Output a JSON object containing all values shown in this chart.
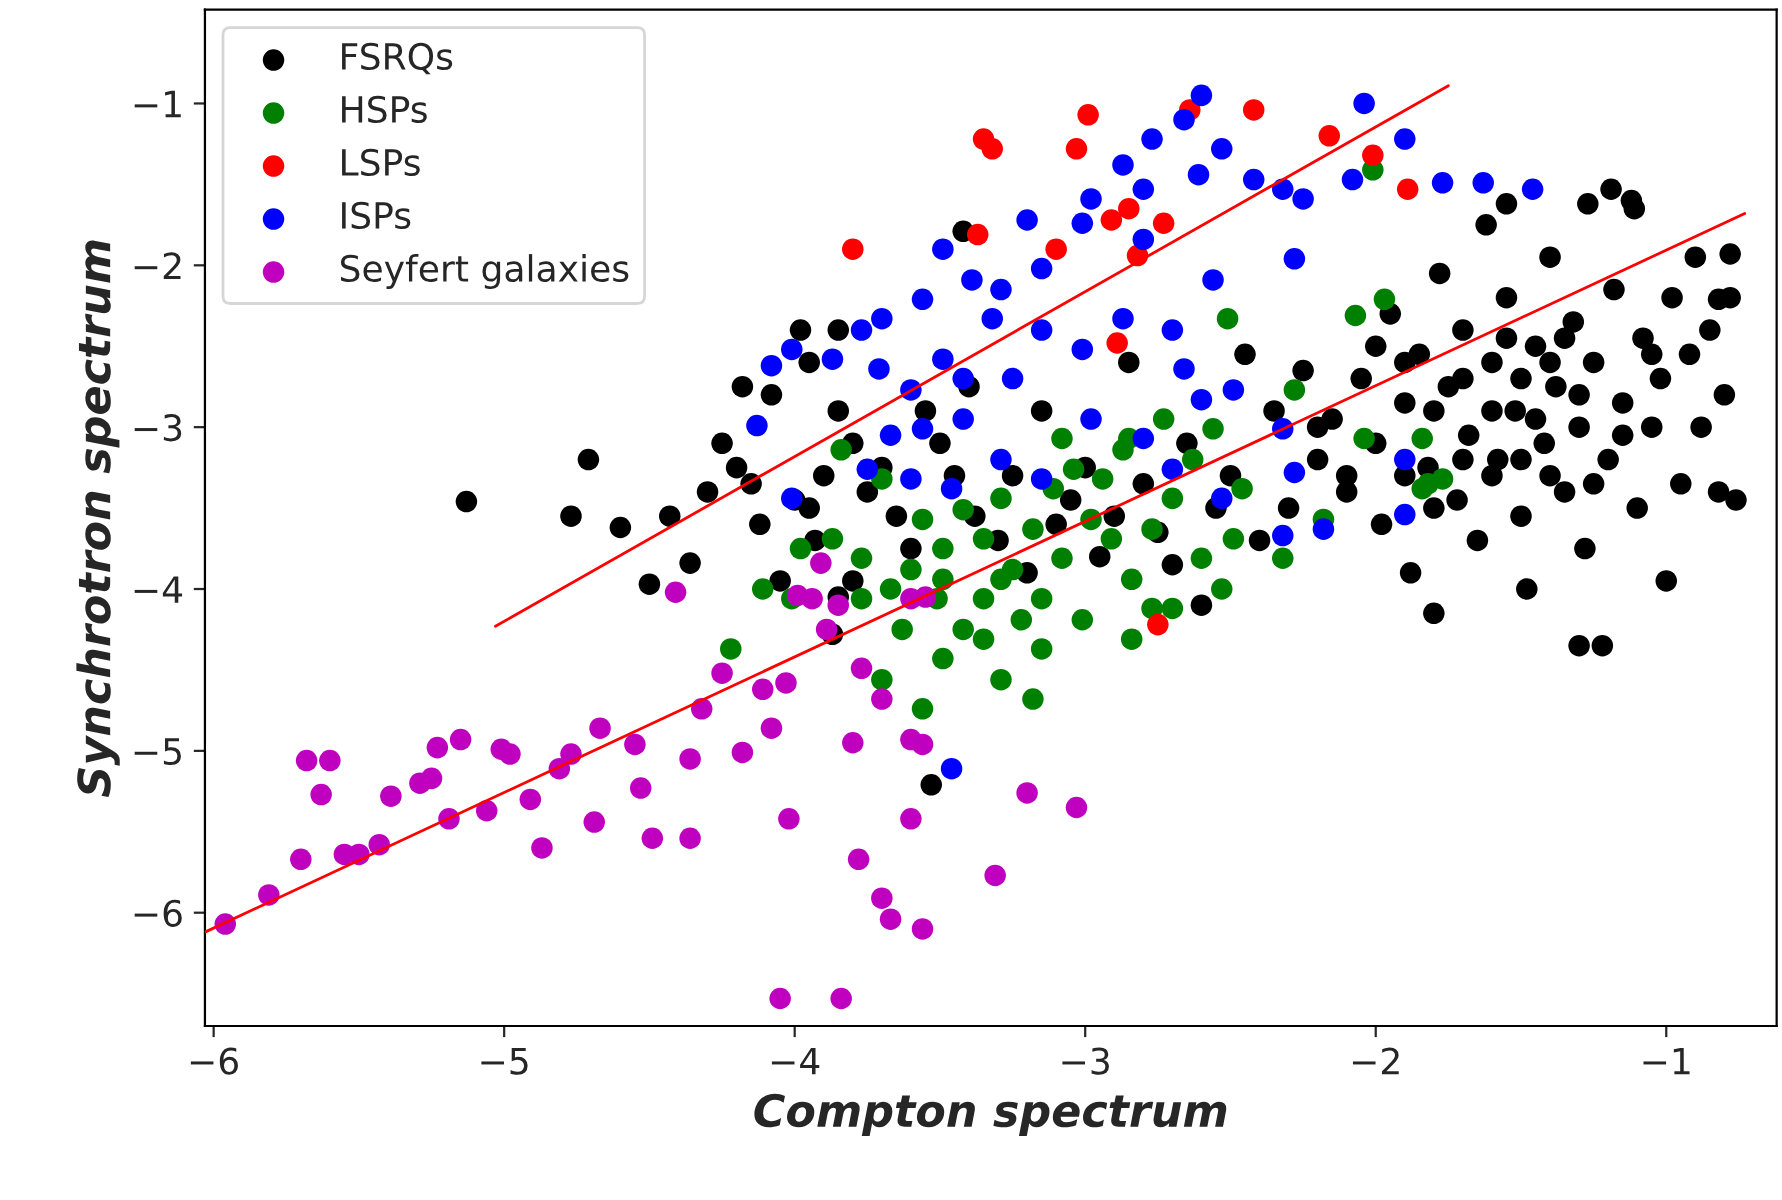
{
  "chart_data": {
    "type": "scatter",
    "xlabel": "Compton spectrum",
    "ylabel": "Synchrotron spectrum",
    "xlim": [
      -6.03,
      -0.62
    ],
    "ylim": [
      -6.7,
      -0.42
    ],
    "xticks": [
      -6,
      -5,
      -4,
      -3,
      -2,
      -1
    ],
    "yticks": [
      -6,
      -5,
      -4,
      -3,
      -2,
      -1
    ],
    "grid": false,
    "legend": "top left",
    "marker": "circle",
    "series": [
      {
        "name": "FSRQs",
        "color": "#000000",
        "x": [
          -5.13,
          -4.77,
          -4.71,
          -4.6,
          -4.5,
          -4.43,
          -4.36,
          -4.3,
          -4.25,
          -4.2,
          -4.15,
          -4.12,
          -4.05,
          -4.0,
          -3.95,
          -3.93,
          -3.9,
          -3.87,
          -3.85,
          -3.8,
          -3.75,
          -4.08,
          -4.18,
          -3.98,
          -3.95,
          -3.85,
          -3.8,
          -3.7,
          -3.65,
          -3.6,
          -3.55,
          -3.5,
          -3.45,
          -3.4,
          -3.38,
          -3.3,
          -3.25,
          -3.2,
          -3.15,
          -3.1,
          -3.05,
          -3.0,
          -2.95,
          -2.9,
          -2.85,
          -2.8,
          -2.75,
          -2.7,
          -2.65,
          -2.6,
          -2.55,
          -2.5,
          -2.45,
          -2.4,
          -2.35,
          -2.3,
          -2.25,
          -2.2,
          -3.53,
          -3.42,
          -3.85,
          -2.15,
          -2.1,
          -2.05,
          -2.0,
          -1.98,
          -1.95,
          -1.9,
          -1.88,
          -1.85,
          -1.82,
          -1.8,
          -1.78,
          -1.75,
          -1.72,
          -1.7,
          -1.68,
          -1.65,
          -1.62,
          -1.6,
          -1.58,
          -1.55,
          -1.52,
          -1.5,
          -1.48,
          -1.45,
          -1.42,
          -1.4,
          -1.38,
          -1.35,
          -1.32,
          -1.3,
          -1.28,
          -1.25,
          -1.22,
          -1.2,
          -1.18,
          -1.15,
          -1.12,
          -1.1,
          -1.08,
          -1.05,
          -1.02,
          -1.0,
          -0.98,
          -0.95,
          -0.92,
          -0.9,
          -0.88,
          -0.85,
          -0.82,
          -0.8,
          -0.76,
          -0.78,
          -1.55,
          -1.27,
          -1.19,
          -1.11,
          -0.78,
          -0.82,
          -1.3,
          -2.0,
          -1.9,
          -1.8,
          -1.7,
          -1.6,
          -1.5,
          -1.4,
          -1.3,
          -1.6,
          -1.7,
          -1.5,
          -1.4,
          -1.8,
          -2.1,
          -2.2,
          -1.9,
          -1.55,
          -1.45,
          -1.35,
          -1.25,
          -1.15,
          -1.05
        ],
        "values": [
          -3.46,
          -3.55,
          -3.2,
          -3.62,
          -3.97,
          -3.55,
          -3.84,
          -3.4,
          -3.1,
          -3.25,
          -3.35,
          -3.6,
          -3.95,
          -3.45,
          -3.5,
          -3.7,
          -3.3,
          -4.28,
          -4.05,
          -3.95,
          -3.4,
          -2.8,
          -2.75,
          -2.4,
          -2.6,
          -2.9,
          -3.1,
          -3.25,
          -3.55,
          -3.75,
          -2.9,
          -3.1,
          -3.3,
          -2.75,
          -3.55,
          -3.7,
          -3.3,
          -3.9,
          -2.9,
          -3.6,
          -3.45,
          -3.25,
          -3.8,
          -3.55,
          -2.6,
          -3.35,
          -3.65,
          -3.85,
          -3.1,
          -4.1,
          -3.5,
          -3.3,
          -2.55,
          -3.7,
          -2.9,
          -3.5,
          -2.65,
          -3.2,
          -5.21,
          -1.79,
          -2.4,
          -2.95,
          -3.4,
          -2.7,
          -3.1,
          -3.6,
          -2.3,
          -2.85,
          -3.9,
          -2.55,
          -3.25,
          -4.15,
          -2.05,
          -2.75,
          -3.45,
          -2.4,
          -3.05,
          -3.7,
          -1.75,
          -2.6,
          -3.2,
          -2.2,
          -2.9,
          -3.55,
          -4.0,
          -2.5,
          -3.1,
          -1.95,
          -2.75,
          -3.4,
          -2.35,
          -3.0,
          -3.75,
          -2.6,
          -4.35,
          -3.2,
          -2.15,
          -2.85,
          -1.6,
          -3.5,
          -2.45,
          -3.0,
          -2.7,
          -3.95,
          -2.2,
          -3.35,
          -2.55,
          -1.95,
          -3.0,
          -2.4,
          -3.4,
          -2.8,
          -3.45,
          -2.2,
          -1.62,
          -1.62,
          -1.53,
          -1.65,
          -1.93,
          -2.21,
          -4.35,
          -2.5,
          -2.6,
          -2.9,
          -2.7,
          -2.9,
          -2.7,
          -2.6,
          -2.8,
          -3.3,
          -3.2,
          -3.2,
          -3.3,
          -3.5,
          -3.3,
          -3.0,
          -3.3,
          -2.45,
          -2.95,
          -2.45,
          -3.35,
          -3.05,
          -2.55
        ]
      },
      {
        "name": "HSPs",
        "color": "#008000",
        "x": [
          -3.84,
          -3.7,
          -3.56,
          -3.49,
          -3.42,
          -3.35,
          -3.29,
          -3.25,
          -3.18,
          -3.15,
          -3.08,
          -3.01,
          -2.98,
          -2.91,
          -2.84,
          -2.77,
          -2.7,
          -2.63,
          -2.56,
          -2.46,
          -2.32,
          -2.18,
          -2.04,
          -1.97,
          -1.84,
          -1.77,
          -1.84,
          -3.51,
          -3.63,
          -3.7,
          -3.56,
          -3.49,
          -3.42,
          -3.35,
          -3.22,
          -3.18,
          -3.15,
          -3.29,
          -3.35,
          -3.77,
          -3.87,
          -3.98,
          -4.11,
          -4.22,
          -4.01,
          -3.6,
          -3.67,
          -3.49,
          -3.29,
          -3.11,
          -3.04,
          -2.94,
          -2.87,
          -2.6,
          -2.53,
          -2.49,
          -2.77,
          -3.08,
          -2.85,
          -2.73,
          -3.77,
          -2.28,
          -2.51,
          -2.07,
          -2.01,
          -1.82,
          -2.84,
          -2.7
        ],
        "values": [
          -3.14,
          -3.32,
          -3.57,
          -3.75,
          -3.51,
          -3.69,
          -3.44,
          -3.88,
          -3.63,
          -4.06,
          -3.81,
          -4.19,
          -3.57,
          -3.69,
          -3.94,
          -3.63,
          -3.44,
          -3.2,
          -3.01,
          -3.38,
          -3.81,
          -3.57,
          -3.07,
          -2.21,
          -3.07,
          -3.32,
          -3.38,
          -4.06,
          -4.25,
          -4.56,
          -4.74,
          -4.43,
          -4.25,
          -4.06,
          -4.19,
          -4.68,
          -4.37,
          -4.56,
          -4.31,
          -3.81,
          -3.69,
          -3.75,
          -4.0,
          -4.37,
          -4.06,
          -3.88,
          -4.0,
          -3.94,
          -3.94,
          -3.38,
          -3.26,
          -3.32,
          -3.14,
          -3.81,
          -4.0,
          -3.69,
          -4.12,
          -3.07,
          -3.07,
          -2.95,
          -4.06,
          -2.77,
          -2.33,
          -2.31,
          -1.41,
          -3.35,
          -4.31,
          -4.12
        ]
      },
      {
        "name": "LSPs",
        "color": "#ff0000",
        "x": [
          -3.8,
          -3.35,
          -3.32,
          -3.03,
          -2.99,
          -2.64,
          -2.42,
          -2.16,
          -2.01,
          -1.89,
          -2.85,
          -2.91,
          -2.82,
          -2.89,
          -3.1,
          -3.37,
          -2.73,
          -2.75
        ],
        "values": [
          -1.9,
          -1.22,
          -1.28,
          -1.28,
          -1.07,
          -1.04,
          -1.04,
          -1.2,
          -1.32,
          -1.53,
          -1.65,
          -1.72,
          -1.94,
          -2.48,
          -1.9,
          -1.81,
          -1.74,
          -4.22
        ]
      },
      {
        "name": "ISPs",
        "color": "#0000ff",
        "x": [
          -2.6,
          -2.77,
          -2.66,
          -2.53,
          -2.42,
          -2.61,
          -2.87,
          -2.98,
          -2.8,
          -3.01,
          -3.2,
          -3.49,
          -3.15,
          -3.29,
          -3.39,
          -3.56,
          -3.7,
          -3.77,
          -3.87,
          -3.71,
          -3.49,
          -3.32,
          -3.15,
          -3.01,
          -2.87,
          -2.7,
          -2.56,
          -2.32,
          -2.25,
          -2.04,
          -1.9,
          -2.28,
          -2.66,
          -3.25,
          -3.42,
          -3.56,
          -3.6,
          -3.46,
          -3.29,
          -3.15,
          -2.98,
          -2.8,
          -2.7,
          -2.6,
          -2.49,
          -2.32,
          -2.53,
          -3.42,
          -4.01,
          -4.01,
          -4.13,
          -2.8,
          -1.77,
          -1.63,
          -2.18,
          -2.28,
          -1.9,
          -4.08,
          -3.67,
          -3.75,
          -3.46,
          -2.32,
          -2.08,
          -3.6,
          -1.46,
          -1.9
        ],
        "values": [
          -0.95,
          -1.22,
          -1.1,
          -1.28,
          -1.47,
          -1.44,
          -1.38,
          -1.59,
          -1.53,
          -1.74,
          -1.72,
          -1.9,
          -2.02,
          -2.15,
          -2.09,
          -2.21,
          -2.33,
          -2.4,
          -2.58,
          -2.64,
          -2.58,
          -2.33,
          -2.4,
          -2.52,
          -2.33,
          -2.4,
          -2.09,
          -1.53,
          -1.59,
          -1.0,
          -1.22,
          -1.96,
          -2.64,
          -2.7,
          -2.95,
          -3.01,
          -3.32,
          -3.38,
          -3.2,
          -3.32,
          -2.95,
          -3.07,
          -3.26,
          -2.83,
          -2.77,
          -3.01,
          -3.44,
          -2.7,
          -3.44,
          -2.52,
          -2.99,
          -1.84,
          -1.49,
          -1.49,
          -3.63,
          -3.28,
          -3.2,
          -2.62,
          -3.05,
          -3.26,
          -5.11,
          -3.67,
          -1.47,
          -2.77,
          -1.53,
          -3.54
        ]
      },
      {
        "name": "Seyfert galaxies",
        "color": "#bf00bf",
        "x": [
          -5.96,
          -5.81,
          -5.68,
          -5.6,
          -5.7,
          -5.55,
          -5.63,
          -5.39,
          -5.5,
          -5.43,
          -5.29,
          -5.25,
          -5.23,
          -5.19,
          -5.15,
          -5.06,
          -5.01,
          -4.98,
          -4.91,
          -4.87,
          -4.81,
          -4.77,
          -4.69,
          -4.67,
          -4.55,
          -4.53,
          -4.49,
          -4.36,
          -4.36,
          -4.32,
          -4.18,
          -4.11,
          -4.08,
          -4.02,
          -3.94,
          -4.03,
          -3.91,
          -3.89,
          -3.8,
          -3.77,
          -3.7,
          -3.6,
          -3.6,
          -3.56,
          -3.78,
          -3.6,
          -3.67,
          -3.56,
          -3.2,
          -3.03,
          -3.7,
          -4.05,
          -3.84,
          -4.41,
          -4.25,
          -3.99,
          -3.85,
          -3.55,
          -3.31
        ],
        "values": [
          -6.07,
          -5.89,
          -5.06,
          -5.06,
          -5.67,
          -5.64,
          -5.27,
          -5.28,
          -5.64,
          -5.58,
          -5.2,
          -5.17,
          -4.98,
          -5.42,
          -4.93,
          -5.37,
          -4.99,
          -5.02,
          -5.3,
          -5.6,
          -5.11,
          -5.02,
          -5.44,
          -4.86,
          -4.96,
          -5.23,
          -5.54,
          -5.05,
          -5.54,
          -4.74,
          -5.01,
          -4.62,
          -4.86,
          -5.42,
          -4.06,
          -4.58,
          -3.84,
          -4.25,
          -4.95,
          -4.49,
          -4.68,
          -4.06,
          -4.93,
          -4.96,
          -5.67,
          -5.42,
          -6.04,
          -6.1,
          -5.26,
          -5.35,
          -5.91,
          -6.53,
          -6.53,
          -4.02,
          -4.52,
          -4.04,
          -4.1,
          -4.05,
          -5.77
        ]
      },
      {
        "type": "line",
        "marker": "none",
        "color": "#ff0000",
        "x": [
          -5.03,
          -1.75
        ],
        "values": [
          -4.23,
          -0.89
        ]
      },
      {
        "type": "line",
        "marker": "none",
        "color": "#ff0000",
        "x": [
          -6.03,
          -0.73
        ],
        "values": [
          -6.12,
          -1.68
        ]
      }
    ]
  }
}
